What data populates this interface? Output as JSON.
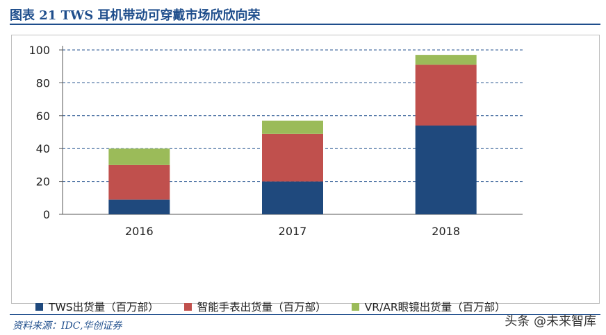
{
  "figure": {
    "title": "图表 21   TWS 耳机带动可穿戴市场欣欣向荣",
    "source": "资料来源：IDC,华创证券",
    "watermark": "头条 @未来智库"
  },
  "colors": {
    "tws": "#1f497d",
    "smartwatch": "#c0504d",
    "vrar": "#9bbb59",
    "accent": "#1f4e8c",
    "grid": "#1f4e8c"
  },
  "chart_data": {
    "type": "bar",
    "stacked": true,
    "categories": [
      "2016",
      "2017",
      "2018"
    ],
    "series": [
      {
        "name": "TWS出货量（百万部）",
        "values": [
          9,
          20,
          54
        ]
      },
      {
        "name": "智能手表出货量（百万部）",
        "values": [
          21,
          29,
          37
        ]
      },
      {
        "name": "VR/AR眼镜出货量（百万部）",
        "values": [
          10,
          8,
          6
        ]
      }
    ],
    "yticks": [
      "0",
      "20",
      "40",
      "60",
      "80",
      "100"
    ],
    "ylim": [
      0,
      100
    ],
    "grid": true,
    "legend_position": "bottom"
  }
}
